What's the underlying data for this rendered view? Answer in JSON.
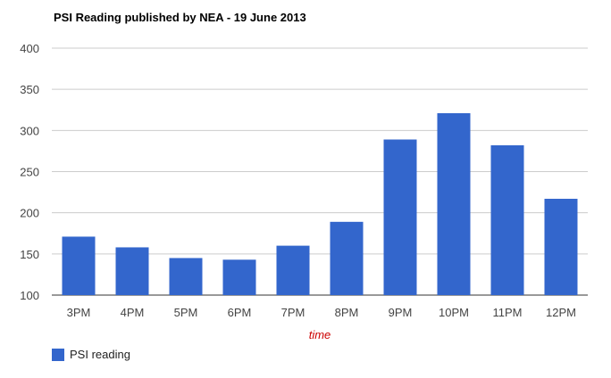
{
  "chart_data": {
    "type": "bar",
    "title": "PSI Reading published by NEA - 19 June 2013",
    "xlabel": "time",
    "ylabel": "",
    "categories": [
      "3PM",
      "4PM",
      "5PM",
      "6PM",
      "7PM",
      "8PM",
      "9PM",
      "10PM",
      "11PM",
      "12PM"
    ],
    "series": [
      {
        "name": "PSI reading",
        "values": [
          171,
          158,
          145,
          143,
          160,
          189,
          289,
          321,
          282,
          217
        ]
      }
    ],
    "ylim": [
      100,
      400
    ],
    "yticks": [
      400,
      350,
      300,
      250,
      200,
      150,
      100
    ],
    "grid": true,
    "legend_position": "bottom-left",
    "colors": {
      "bar": "#3366cc",
      "grid": "#cccccc",
      "xlabel": "#cc0000",
      "tick": "#444444"
    }
  }
}
